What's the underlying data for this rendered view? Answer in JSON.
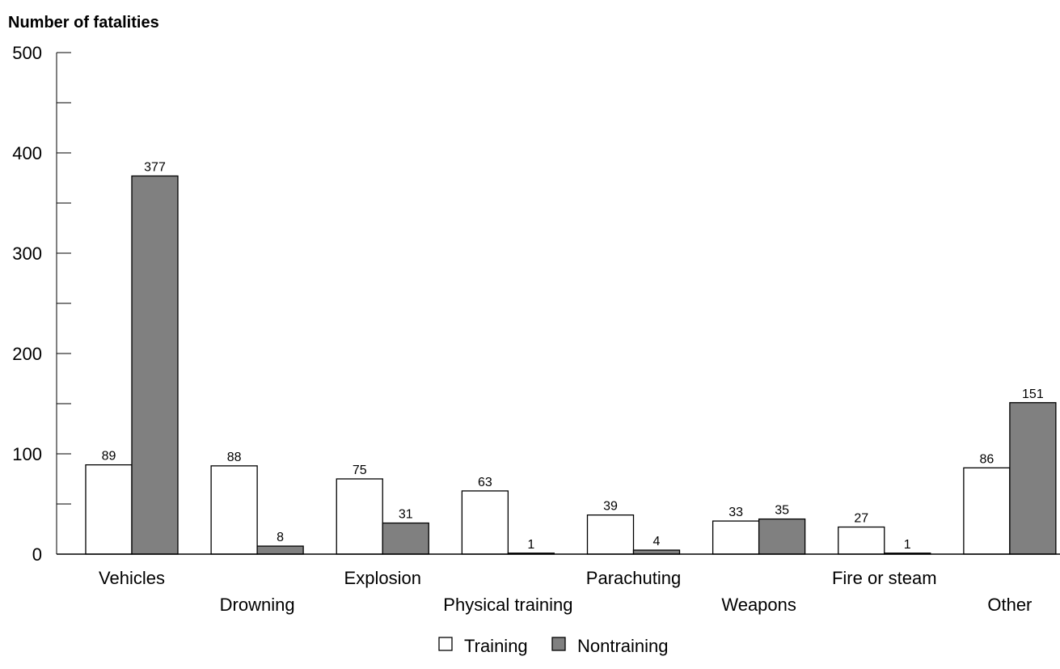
{
  "chart_data": {
    "type": "bar",
    "title": "",
    "xlabel": "",
    "ylabel": "Number of fatalities",
    "ylim": [
      0,
      500
    ],
    "yticks": [
      0,
      100,
      200,
      300,
      400,
      500
    ],
    "grid": false,
    "legend_position": "bottom-center",
    "categories": [
      "Vehicles",
      "Drowning",
      "Explosion",
      "Physical training",
      "Parachuting",
      "Weapons",
      "Fire or steam",
      "Other"
    ],
    "series": [
      {
        "name": "Training",
        "color": "#ffffff",
        "values": [
          89,
          88,
          75,
          63,
          39,
          33,
          27,
          86
        ]
      },
      {
        "name": "Nontraining",
        "color": "#808080",
        "values": [
          377,
          8,
          31,
          1,
          4,
          35,
          1,
          151
        ]
      }
    ]
  }
}
